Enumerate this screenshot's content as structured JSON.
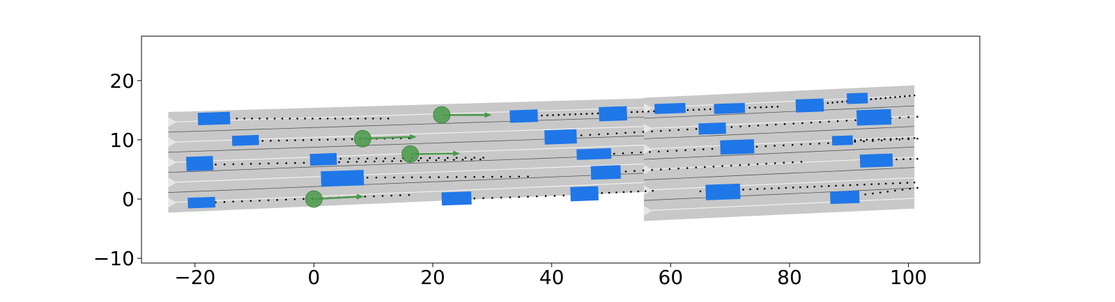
{
  "chart_data": {
    "type": "scatter",
    "title": "",
    "xlabel": "",
    "ylabel": "",
    "xlim": [
      -29,
      112
    ],
    "ylim": [
      -10.8,
      27.5
    ],
    "grid": false,
    "x_ticks": [
      -20,
      0,
      20,
      40,
      60,
      80,
      100
    ],
    "y_ticks": [
      -10,
      0,
      10,
      20
    ],
    "colors": {
      "road": "#c8c8c8",
      "road_edge": "#555555",
      "lane_divider": "#ffffff",
      "vehicle": "#1f77e8",
      "agent": "#4a9a4a",
      "agent_edge": "#2e7d32",
      "trajectory": "#000000"
    },
    "road_segments": [
      {
        "x_start": -24.5,
        "x_end": 55.5,
        "lower_edge_y_start": -2.3,
        "lower_edge_y_end": 1.2,
        "upper_edge_y_start": 14.7,
        "upper_edge_y_end": 17.0,
        "lanes": 5
      },
      {
        "x_start": 55.5,
        "x_end": 101.0,
        "lower_edge_y_start": -3.7,
        "lower_edge_y_end": -1.6,
        "upper_edge_y_start": 17.1,
        "upper_edge_y_end": 19.2,
        "lanes": 6
      }
    ],
    "vehicles": [
      {
        "x": -16.8,
        "y": 13.6,
        "length": 5.4,
        "width": 2.1
      },
      {
        "x": -11.5,
        "y": 9.9,
        "length": 4.5,
        "width": 1.7
      },
      {
        "x": -19.2,
        "y": 6.0,
        "length": 4.5,
        "width": 2.4
      },
      {
        "x": 1.6,
        "y": 6.7,
        "length": 4.5,
        "width": 2.0
      },
      {
        "x": 4.8,
        "y": 3.5,
        "length": 7.2,
        "width": 2.6
      },
      {
        "x": -18.9,
        "y": -0.6,
        "length": 4.6,
        "width": 1.8
      },
      {
        "x": 24.0,
        "y": 0.1,
        "length": 5.0,
        "width": 2.2
      },
      {
        "x": 35.3,
        "y": 14.0,
        "length": 4.7,
        "width": 2.1
      },
      {
        "x": 50.3,
        "y": 14.4,
        "length": 4.7,
        "width": 2.4
      },
      {
        "x": 41.5,
        "y": 10.5,
        "length": 5.4,
        "width": 2.4
      },
      {
        "x": 47.1,
        "y": 7.6,
        "length": 5.8,
        "width": 1.8
      },
      {
        "x": 49.1,
        "y": 4.5,
        "length": 5.0,
        "width": 2.3
      },
      {
        "x": 45.5,
        "y": 0.9,
        "length": 4.7,
        "width": 2.4
      },
      {
        "x": 59.9,
        "y": 15.3,
        "length": 5.2,
        "width": 1.7
      },
      {
        "x": 69.9,
        "y": 15.3,
        "length": 5.2,
        "width": 1.7
      },
      {
        "x": 83.4,
        "y": 15.8,
        "length": 4.7,
        "width": 2.2
      },
      {
        "x": 91.4,
        "y": 17.0,
        "length": 3.5,
        "width": 1.8
      },
      {
        "x": 67.0,
        "y": 11.9,
        "length": 4.6,
        "width": 1.9
      },
      {
        "x": 71.2,
        "y": 8.8,
        "length": 5.7,
        "width": 2.4
      },
      {
        "x": 68.8,
        "y": 1.2,
        "length": 5.8,
        "width": 2.6
      },
      {
        "x": 94.2,
        "y": 13.8,
        "length": 5.8,
        "width": 2.6
      },
      {
        "x": 88.9,
        "y": 9.9,
        "length": 3.5,
        "width": 1.6
      },
      {
        "x": 94.6,
        "y": 6.5,
        "length": 5.5,
        "width": 2.2
      },
      {
        "x": 89.3,
        "y": 0.3,
        "length": 4.9,
        "width": 2.1
      }
    ],
    "agents": [
      {
        "x": 0.0,
        "y": 0.0,
        "vx": 8.4,
        "vy": 0.4
      },
      {
        "x": 8.2,
        "y": 10.2,
        "vx": 9.1,
        "vy": 0.3
      },
      {
        "x": 16.2,
        "y": 7.6,
        "vx": 8.4,
        "vy": 0.1
      },
      {
        "x": 21.5,
        "y": 14.2,
        "vx": 8.4,
        "vy": 0.0
      }
    ],
    "trajectories": [
      {
        "x_start": -15.5,
        "y_start": 13.6,
        "x_end": 12.5,
        "y_end": 13.6,
        "step": 1.3
      },
      {
        "x_start": -10.0,
        "y_start": 9.8,
        "x_end": 16.0,
        "y_end": 10.3,
        "step": 1.4
      },
      {
        "x_start": -18.0,
        "y_start": 5.8,
        "x_end": 28.0,
        "y_end": 6.7,
        "step": 1.5
      },
      {
        "x_start": 3.0,
        "y_start": 6.8,
        "x_end": 28.5,
        "y_end": 7.0,
        "step": 1.5
      },
      {
        "x_start": 6.0,
        "y_start": 3.6,
        "x_end": 36.0,
        "y_end": 3.8,
        "step": 1.5
      },
      {
        "x_start": -18.0,
        "y_start": -0.6,
        "x_end": 16.0,
        "y_end": 0.7,
        "step": 1.5
      },
      {
        "x_start": 24.0,
        "y_start": 0.0,
        "x_end": 45.0,
        "y_end": 0.7,
        "step": 1.5
      },
      {
        "x_start": 35.5,
        "y_start": 14.0,
        "x_end": 78.0,
        "y_end": 15.6,
        "step": 0.95
      },
      {
        "x_start": 42.0,
        "y_start": 10.6,
        "x_end": 101.5,
        "y_end": 13.9,
        "step": 1.5
      },
      {
        "x_start": 47.5,
        "y_start": 7.5,
        "x_end": 101.5,
        "y_end": 10.2,
        "step": 1.5
      },
      {
        "x_start": 49.5,
        "y_start": 4.5,
        "x_end": 82.0,
        "y_end": 6.3,
        "step": 1.5
      },
      {
        "x_start": 46.0,
        "y_start": 0.9,
        "x_end": 57.0,
        "y_end": 1.4,
        "step": 1.2
      },
      {
        "x_start": 65.0,
        "y_start": 1.3,
        "x_end": 101.0,
        "y_end": 2.8,
        "step": 1.2
      },
      {
        "x_start": 89.0,
        "y_start": 0.3,
        "x_end": 101.5,
        "y_end": 1.9,
        "step": 1.3
      },
      {
        "x_start": 90.0,
        "y_start": 9.9,
        "x_end": 101.0,
        "y_end": 10.3,
        "step": 1.0
      },
      {
        "x_start": 94.5,
        "y_start": 6.6,
        "x_end": 101.5,
        "y_end": 6.8,
        "step": 1.2
      },
      {
        "x_start": 84.0,
        "y_start": 16.0,
        "x_end": 101.0,
        "y_end": 17.5,
        "step": 0.8
      }
    ]
  }
}
